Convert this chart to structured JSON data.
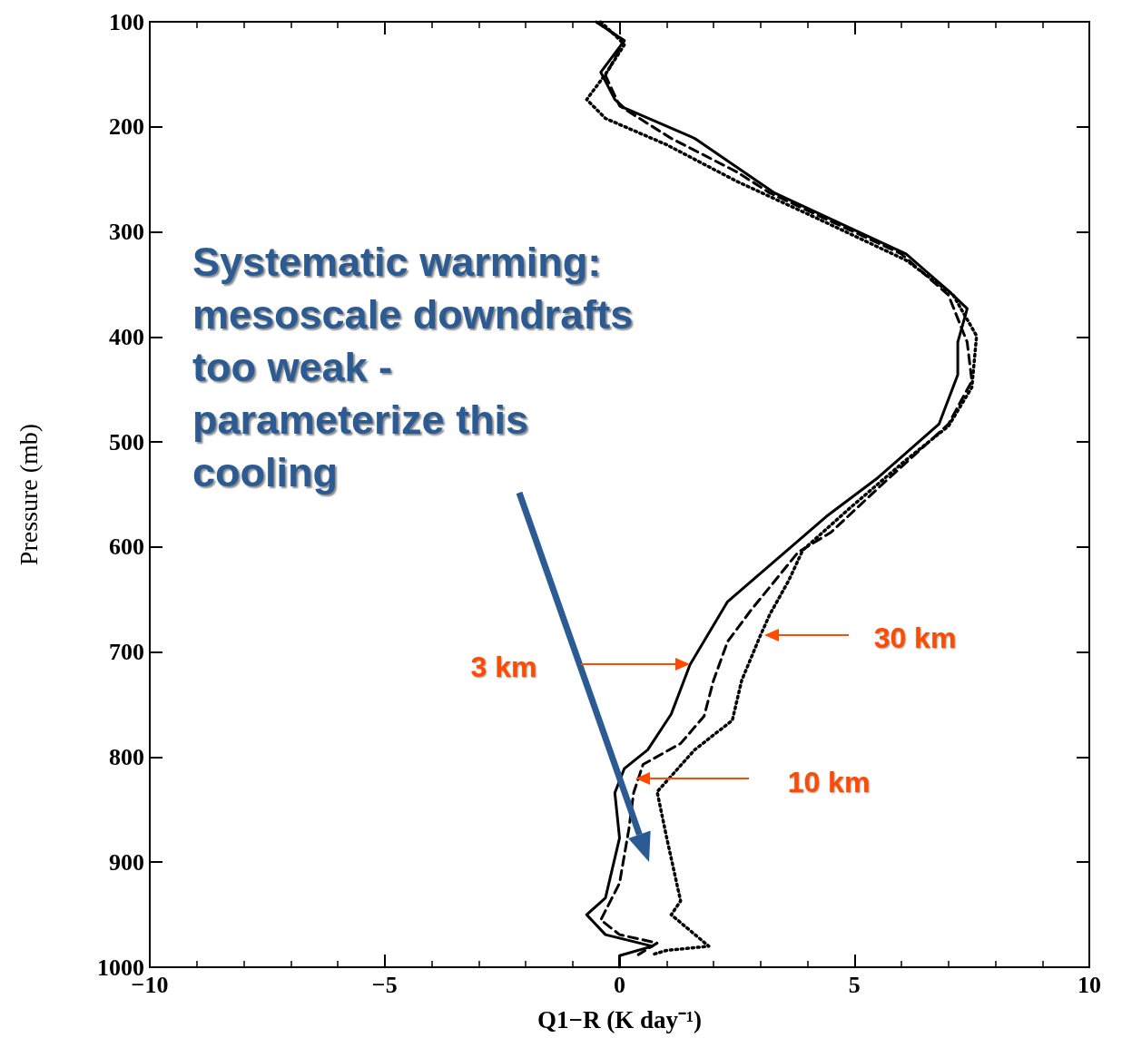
{
  "chart_data": {
    "type": "line",
    "xlabel": "Q1−R (K day⁻¹)",
    "ylabel": "Pressure (mb)",
    "xlim": [
      -10,
      10
    ],
    "xticks": [
      {
        "value": -10,
        "label": "−10"
      },
      {
        "value": -5,
        "label": "−5"
      },
      0,
      5,
      10
    ],
    "ylim": [
      1000,
      100
    ],
    "yticks": [
      100,
      200,
      300,
      400,
      500,
      600,
      700,
      800,
      900,
      1000
    ],
    "grid": false,
    "marker": "none",
    "series": [
      {
        "color": "#000000",
        "line_style": "solid",
        "x": [
          -0.5,
          0.1,
          -0.4,
          -0.1,
          0.1,
          1.6,
          3.3,
          6.1,
          7.0,
          7.4,
          7.2,
          7.2,
          6.8,
          5.5,
          4.4,
          2.3,
          1.5,
          1.1,
          0.6,
          0.1,
          -0.1,
          0,
          -0.3,
          -0.7,
          -0.3,
          0.7,
          0,
          0
        ],
        "values": [
          100,
          118,
          148,
          174,
          182,
          211,
          263,
          321,
          356,
          373,
          405,
          436,
          483,
          534,
          571,
          652,
          712,
          759,
          793,
          811,
          834,
          877,
          934,
          950,
          969,
          980,
          989,
          1000
        ]
      },
      {
        "color": "#000000",
        "line_style": "dashed",
        "x": [
          -0.5,
          0.1,
          -0.3,
          0,
          1.1,
          2.5,
          3.2,
          6.0,
          7.0,
          7.4,
          7.5,
          7.0,
          5.6,
          4.5,
          3.8,
          2.8,
          2.3,
          2.0,
          1.8,
          1.3,
          0.5,
          0.3,
          0.2,
          0,
          -0.4,
          0,
          0.8,
          0.4
        ],
        "values": [
          100,
          118,
          151,
          180,
          211,
          243,
          263,
          321,
          360,
          405,
          442,
          483,
          540,
          586,
          605,
          660,
          690,
          727,
          761,
          787,
          807,
          834,
          868,
          920,
          955,
          969,
          977,
          988
        ]
      },
      {
        "color": "#000000",
        "line_style": "dotted",
        "x": [
          -0.4,
          0,
          0.1,
          -0.3,
          -0.7,
          -0.3,
          1.0,
          2.5,
          4.2,
          6.1,
          7.1,
          7.6,
          7.5,
          7.0,
          6.1,
          4.9,
          3.9,
          3.6,
          3.2,
          3.0,
          2.6,
          2.4,
          1.6,
          0.8,
          1.0,
          1.3,
          1.1,
          1.9,
          1.0,
          0.7
        ],
        "values": [
          100,
          117,
          122,
          150,
          174,
          192,
          217,
          252,
          287,
          327,
          360,
          399,
          448,
          485,
          517,
          563,
          603,
          632,
          664,
          684,
          727,
          765,
          793,
          833,
          876,
          937,
          950,
          980,
          984,
          988
        ]
      }
    ],
    "annotations": [
      "Systematic warming:\nmesoscale downdrafts\ntoo weak -\nparameterize this\ncooling",
      "3 km",
      "30 km",
      "10 km"
    ]
  }
}
